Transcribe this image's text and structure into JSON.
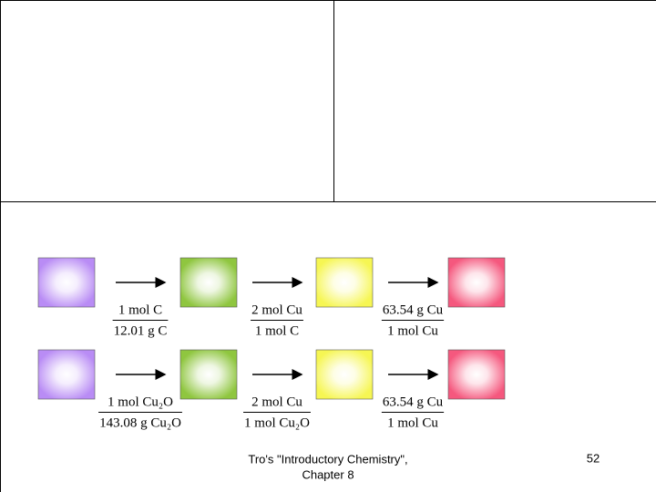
{
  "conversion_rows": [
    {
      "factors": [
        {
          "numerator": "1 mol C",
          "denominator": "12.01 g C"
        },
        {
          "numerator": "2 mol Cu",
          "denominator": "1 mol C"
        },
        {
          "numerator": "63.54 g Cu",
          "denominator": "1 mol Cu"
        }
      ]
    },
    {
      "factors": [
        {
          "numerator": "1 mol Cu₂O",
          "denominator": "143.08 g Cu₂O"
        },
        {
          "numerator": "2 mol Cu",
          "denominator": "1 mol Cu₂O"
        },
        {
          "numerator": "63.54 g Cu",
          "denominator": "1 mol Cu"
        }
      ]
    }
  ],
  "footer": {
    "source_lines": [
      "Tro's \"Introductory Chemistry\",",
      "Chapter 8"
    ],
    "page_number": "52"
  }
}
